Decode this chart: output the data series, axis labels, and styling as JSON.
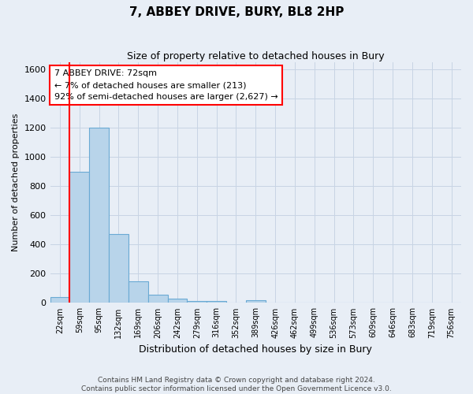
{
  "title": "7, ABBEY DRIVE, BURY, BL8 2HP",
  "subtitle": "Size of property relative to detached houses in Bury",
  "xlabel": "Distribution of detached houses by size in Bury",
  "ylabel": "Number of detached properties",
  "footer_line1": "Contains HM Land Registry data © Crown copyright and database right 2024.",
  "footer_line2": "Contains public sector information licensed under the Open Government Licence v3.0.",
  "categories": [
    "22sqm",
    "59sqm",
    "95sqm",
    "132sqm",
    "169sqm",
    "206sqm",
    "242sqm",
    "279sqm",
    "316sqm",
    "352sqm",
    "389sqm",
    "426sqm",
    "462sqm",
    "499sqm",
    "536sqm",
    "573sqm",
    "609sqm",
    "646sqm",
    "683sqm",
    "719sqm",
    "756sqm"
  ],
  "values": [
    40,
    900,
    1200,
    470,
    150,
    55,
    28,
    15,
    15,
    0,
    18,
    0,
    0,
    0,
    0,
    0,
    0,
    0,
    0,
    0,
    0
  ],
  "bar_color": "#b8d4ea",
  "bar_edge_color": "#6aaad4",
  "grid_color": "#c8d4e4",
  "bg_color": "#e8eef6",
  "annotation_line1": "7 ABBEY DRIVE: 72sqm",
  "annotation_line2": "← 7% of detached houses are smaller (213)",
  "annotation_line3": "92% of semi-detached houses are larger (2,627) →",
  "annotation_box_color": "white",
  "annotation_box_edge_color": "red",
  "red_line_bin_index": 1,
  "ylim": [
    0,
    1650
  ],
  "yticks": [
    0,
    200,
    400,
    600,
    800,
    1000,
    1200,
    1400,
    1600
  ]
}
